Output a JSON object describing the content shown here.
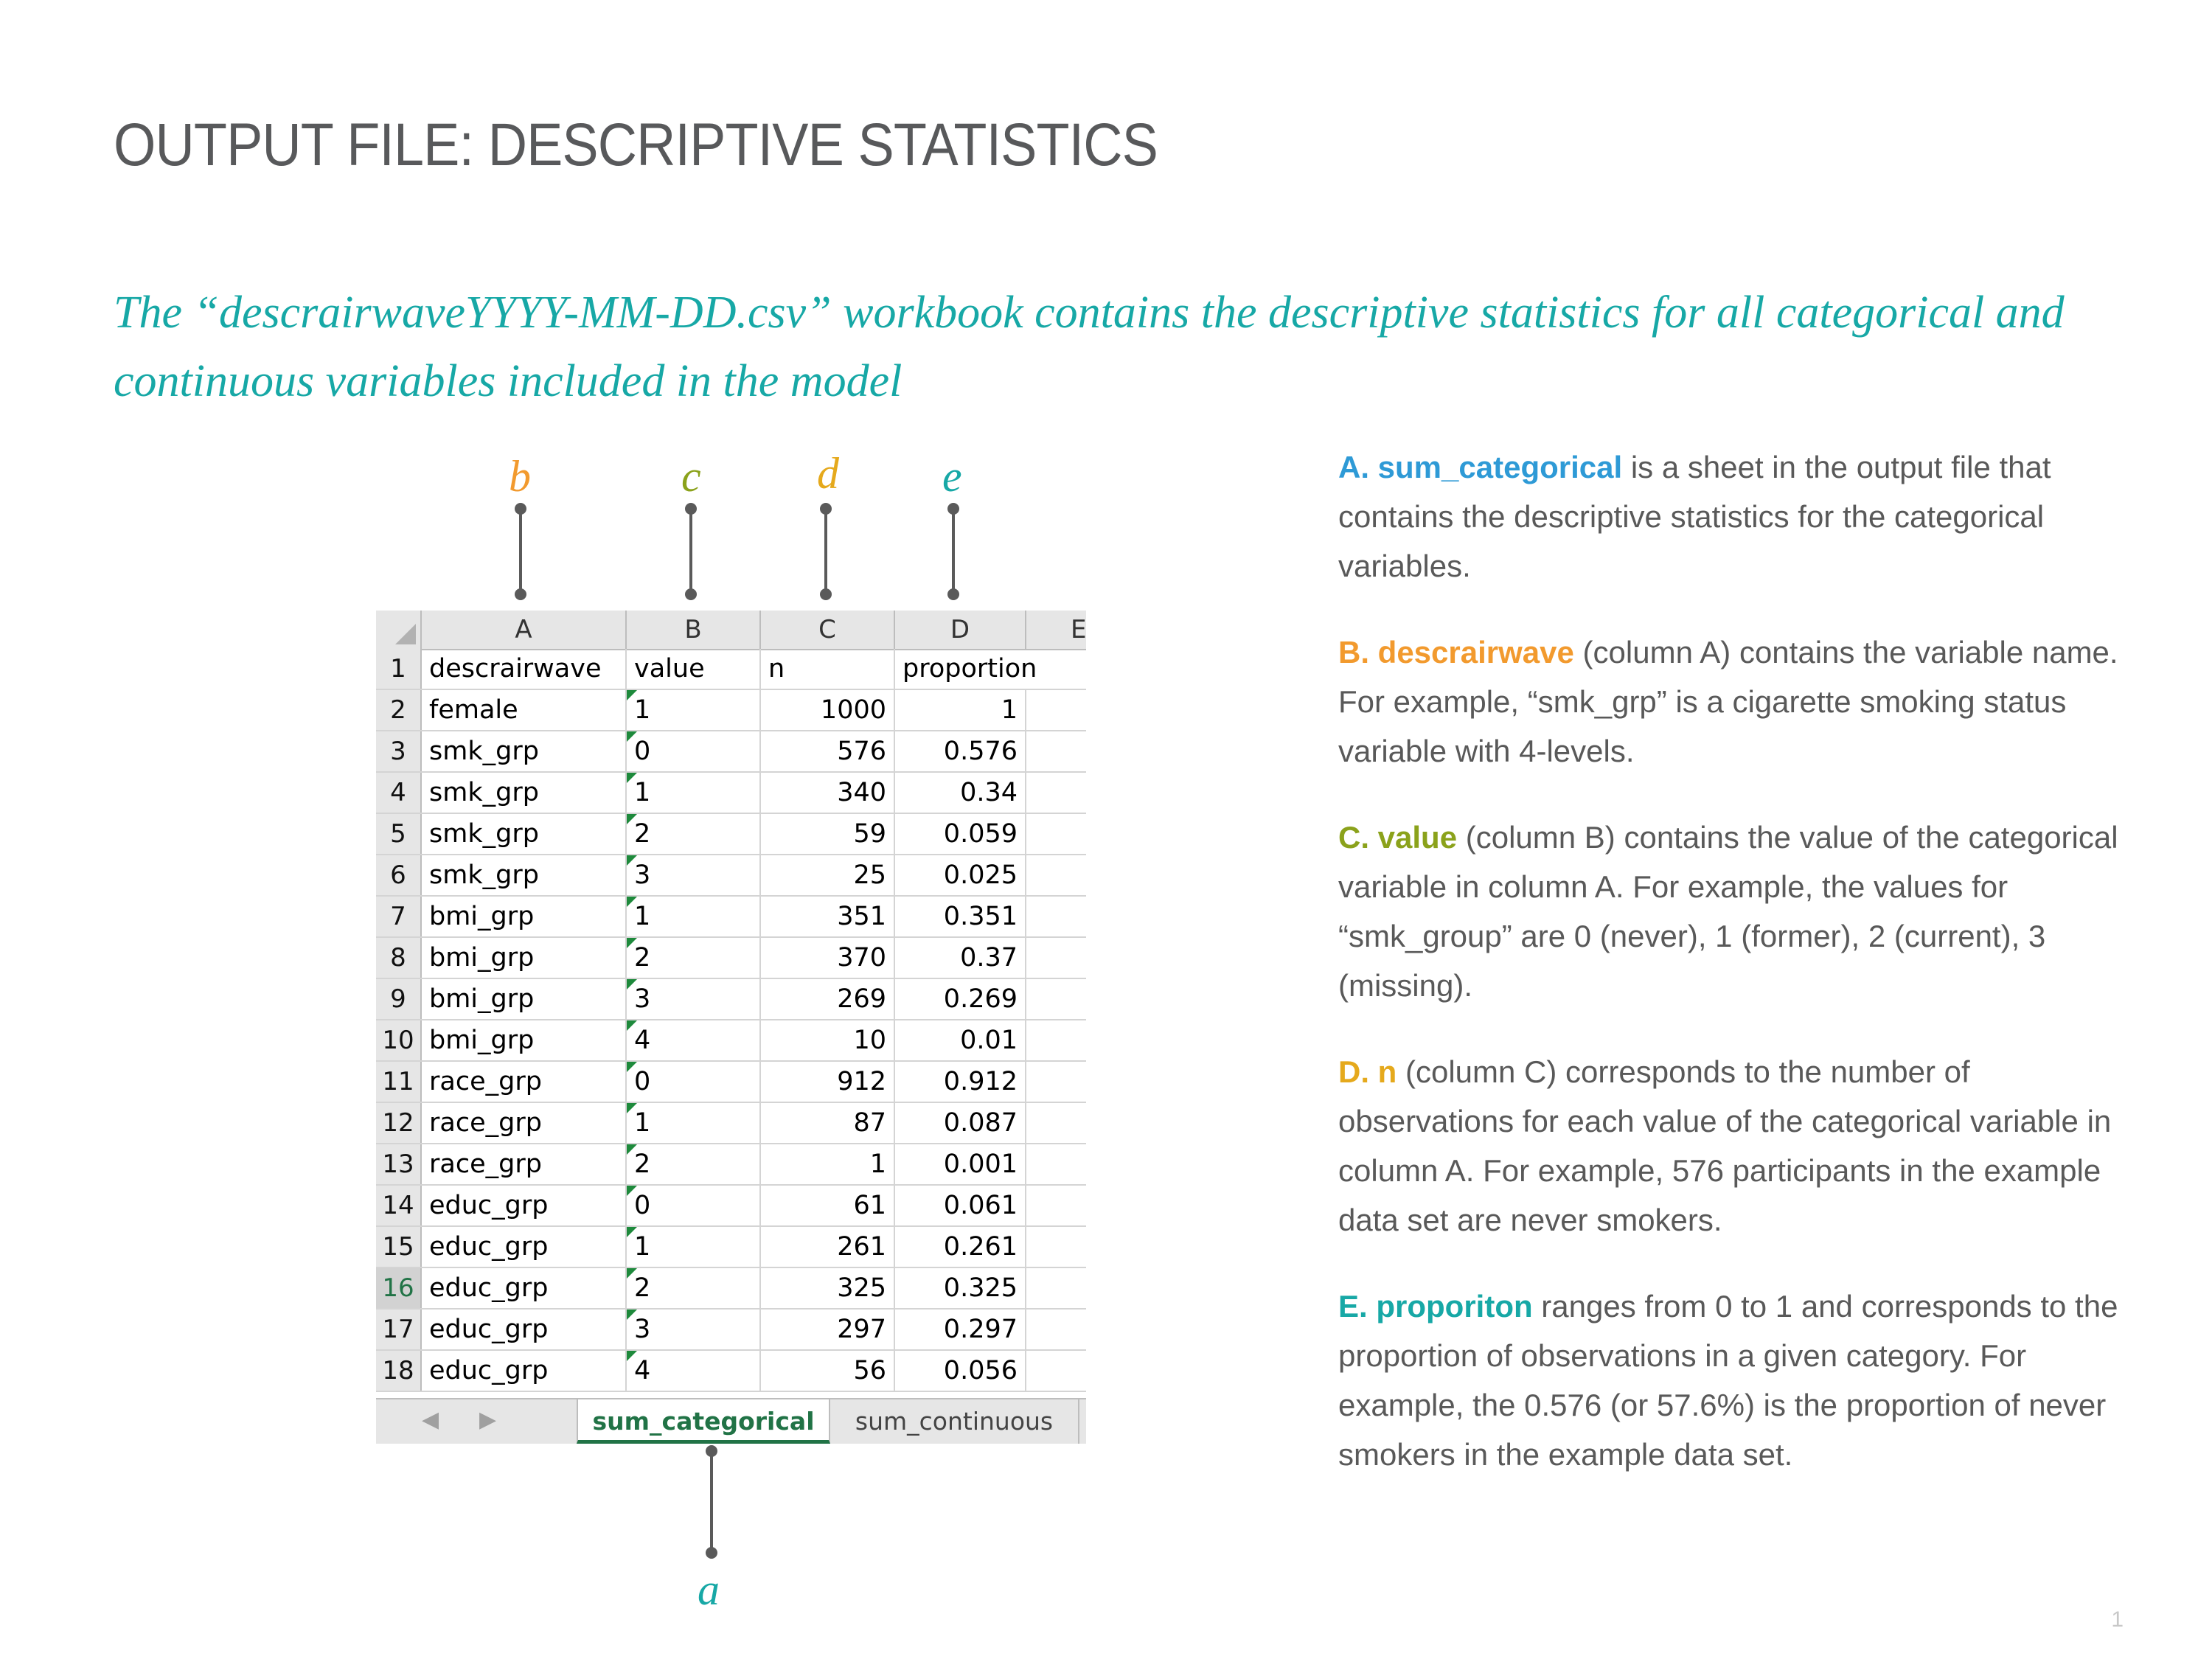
{
  "title": "OUTPUT FILE: DESCRIPTIVE STATISTICS",
  "subtitle": "The “descrairwaveYYYY-MM-DD.csv” workbook contains the descriptive statistics for all categorical and continuous variables included in the model",
  "callouts": {
    "a": "a",
    "b": "b",
    "c": "c",
    "d": "d",
    "e": "e"
  },
  "colors": {
    "teal": "#17a8a6",
    "blue": "#2e9ad6",
    "orange": "#f29a2e",
    "olive": "#8ba21b",
    "gold": "#e5a91c",
    "excel_green": "#217346"
  },
  "spreadsheet": {
    "column_headers": [
      "A",
      "B",
      "C",
      "D",
      "E"
    ],
    "header_row": {
      "num": "1",
      "a": "descrairwave",
      "b": "value",
      "c": "n",
      "d": "proportion"
    },
    "rows": [
      {
        "num": "2",
        "a": "female",
        "b": "1",
        "c": "1000",
        "d": "1"
      },
      {
        "num": "3",
        "a": "smk_grp",
        "b": "0",
        "c": "576",
        "d": "0.576"
      },
      {
        "num": "4",
        "a": "smk_grp",
        "b": "1",
        "c": "340",
        "d": "0.34"
      },
      {
        "num": "5",
        "a": "smk_grp",
        "b": "2",
        "c": "59",
        "d": "0.059"
      },
      {
        "num": "6",
        "a": "smk_grp",
        "b": "3",
        "c": "25",
        "d": "0.025"
      },
      {
        "num": "7",
        "a": "bmi_grp",
        "b": "1",
        "c": "351",
        "d": "0.351"
      },
      {
        "num": "8",
        "a": "bmi_grp",
        "b": "2",
        "c": "370",
        "d": "0.37"
      },
      {
        "num": "9",
        "a": "bmi_grp",
        "b": "3",
        "c": "269",
        "d": "0.269"
      },
      {
        "num": "10",
        "a": "bmi_grp",
        "b": "4",
        "c": "10",
        "d": "0.01"
      },
      {
        "num": "11",
        "a": "race_grp",
        "b": "0",
        "c": "912",
        "d": "0.912"
      },
      {
        "num": "12",
        "a": "race_grp",
        "b": "1",
        "c": "87",
        "d": "0.087"
      },
      {
        "num": "13",
        "a": "race_grp",
        "b": "2",
        "c": "1",
        "d": "0.001"
      },
      {
        "num": "14",
        "a": "educ_grp",
        "b": "0",
        "c": "61",
        "d": "0.061"
      },
      {
        "num": "15",
        "a": "educ_grp",
        "b": "1",
        "c": "261",
        "d": "0.261"
      },
      {
        "num": "16",
        "a": "educ_grp",
        "b": "2",
        "c": "325",
        "d": "0.325"
      },
      {
        "num": "17",
        "a": "educ_grp",
        "b": "3",
        "c": "297",
        "d": "0.297"
      },
      {
        "num": "18",
        "a": "educ_grp",
        "b": "4",
        "c": "56",
        "d": "0.056"
      }
    ],
    "active_row": "16",
    "tabs": {
      "active": "sum_categorical",
      "inactive": "sum_continuous"
    },
    "nav_prev": "◀",
    "nav_next": "▶"
  },
  "explanations": {
    "a_key": "A. sum_categorical",
    "a_text": " is a sheet in the output file that contains the descriptive statistics for the categorical variables.",
    "b_key": "B. descrairwave",
    "b_text": " (column A) contains the variable name. For example, “smk_grp” is a cigarette smoking status variable with 4-levels.",
    "c_key": "C. value",
    "c_text": " (column B) contains the value of the categorical variable in column A. For example, the values for “smk_group” are 0 (never), 1 (former), 2 (current), 3 (missing).",
    "d_key": "D. n",
    "d_text": " (column C) corresponds to the number of observations for each value of the categorical variable in column A. For example, 576 participants in the example data set are never smokers.",
    "e_key": "E. proporiton",
    "e_text": " ranges from 0 to 1 and corresponds to the proportion of observations in a given category. For example, the 0.576 (or 57.6%) is the proportion of never smokers in the example data set."
  },
  "page_number": "1"
}
